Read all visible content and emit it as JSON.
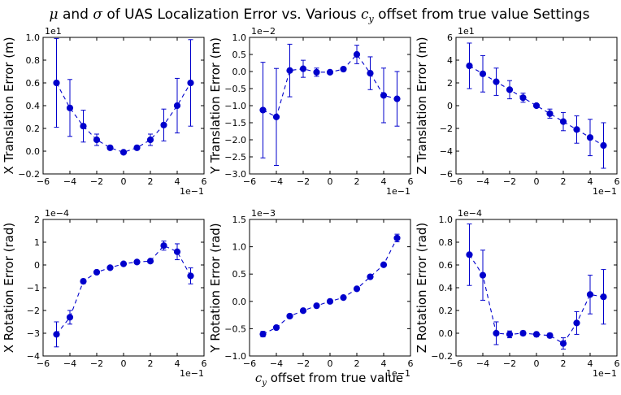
{
  "figure": {
    "title_parts": {
      "mu": "μ",
      "and": " and ",
      "sigma": "σ",
      "middle": " of UAS Localization Error vs. Various ",
      "c": "c",
      "sub": "y",
      "end": " offset from true value Settings"
    },
    "xlabel_parts": {
      "c": "c",
      "sub": "y",
      "end": " offset from true value"
    }
  },
  "colors": {
    "series": "#0000cc",
    "axes": "#000000"
  },
  "chart_data": [
    {
      "type": "scatter",
      "ylabel": "X Translation Error (m)",
      "x_multiplier": "1e−1",
      "y_multiplier": "1e1",
      "xlim": [
        -6,
        6
      ],
      "ylim": [
        -0.2,
        1.0
      ],
      "xticks": [
        -6,
        -4,
        -2,
        0,
        2,
        4,
        6
      ],
      "xtick_labels": [
        "−6",
        "−4",
        "−2",
        "0",
        "2",
        "4",
        "6"
      ],
      "yticks": [
        -0.2,
        0.0,
        0.2,
        0.4,
        0.6,
        0.8,
        1.0
      ],
      "ytick_labels": [
        "−0.2",
        "0.0",
        "0.2",
        "0.4",
        "0.6",
        "0.8",
        "1.0"
      ],
      "x": [
        -5,
        -4,
        -3,
        -2,
        -1,
        0,
        1,
        2,
        3,
        4,
        5
      ],
      "y": [
        0.6,
        0.38,
        0.22,
        0.1,
        0.03,
        -0.01,
        0.03,
        0.1,
        0.23,
        0.4,
        0.6
      ],
      "err": [
        0.39,
        0.25,
        0.14,
        0.05,
        0.01,
        0.01,
        0.01,
        0.05,
        0.14,
        0.24,
        0.38
      ]
    },
    {
      "type": "scatter",
      "ylabel": "Y Translation Error (m)",
      "x_multiplier": "1e−1",
      "y_multiplier": "1e−2",
      "xlim": [
        -6,
        6
      ],
      "ylim": [
        -3.0,
        1.0
      ],
      "xticks": [
        -6,
        -4,
        -2,
        0,
        2,
        4,
        6
      ],
      "xtick_labels": [
        "−6",
        "−4",
        "−2",
        "0",
        "2",
        "4",
        "6"
      ],
      "yticks": [
        -3.0,
        -2.5,
        -2.0,
        -1.5,
        -1.0,
        -0.5,
        0.0,
        0.5,
        1.0
      ],
      "ytick_labels": [
        "−3.0",
        "−2.5",
        "−2.0",
        "−1.5",
        "−1.0",
        "−0.5",
        "0.0",
        "0.5",
        "1.0"
      ],
      "x": [
        -5,
        -4,
        -3,
        -2,
        -1,
        0,
        1,
        2,
        3,
        4,
        5
      ],
      "y": [
        -1.13,
        -1.33,
        0.03,
        0.08,
        -0.02,
        -0.02,
        0.07,
        0.5,
        -0.05,
        -0.7,
        -0.8
      ],
      "err": [
        1.4,
        1.42,
        0.77,
        0.25,
        0.12,
        0.03,
        0.05,
        0.27,
        0.48,
        0.8,
        0.8
      ]
    },
    {
      "type": "scatter",
      "ylabel": "Z Translation Error (m)",
      "x_multiplier": "1e−1",
      "y_multiplier": "1e1",
      "xlim": [
        -6,
        6
      ],
      "ylim": [
        -6,
        6
      ],
      "xticks": [
        -6,
        -4,
        -2,
        0,
        2,
        4,
        6
      ],
      "xtick_labels": [
        "−6",
        "−4",
        "−2",
        "0",
        "2",
        "4",
        "6"
      ],
      "yticks": [
        -6,
        -4,
        -2,
        0,
        2,
        4,
        6
      ],
      "ytick_labels": [
        "−6",
        "−4",
        "−2",
        "0",
        "2",
        "4",
        "6"
      ],
      "x": [
        -5,
        -4,
        -3,
        -2,
        -1,
        0,
        1,
        2,
        3,
        4,
        5
      ],
      "y": [
        3.5,
        2.8,
        2.1,
        1.4,
        0.7,
        0.0,
        -0.7,
        -1.4,
        -2.1,
        -2.8,
        -3.5
      ],
      "err": [
        2.0,
        1.6,
        1.2,
        0.8,
        0.4,
        0.05,
        0.4,
        0.8,
        1.2,
        1.6,
        2.0
      ]
    },
    {
      "type": "scatter",
      "ylabel": "X Rotation Error (rad)",
      "x_multiplier": "1e−1",
      "y_multiplier": "1e−4",
      "xlim": [
        -6,
        6
      ],
      "ylim": [
        -4,
        2
      ],
      "xticks": [
        -6,
        -4,
        -2,
        0,
        2,
        4,
        6
      ],
      "xtick_labels": [
        "−6",
        "−4",
        "−2",
        "0",
        "2",
        "4",
        "6"
      ],
      "yticks": [
        -4,
        -3,
        -2,
        -1,
        0,
        1,
        2
      ],
      "ytick_labels": [
        "−4",
        "−3",
        "−2",
        "−1",
        "0",
        "1",
        "2"
      ],
      "x": [
        -5,
        -4,
        -3,
        -2,
        -1,
        0,
        1,
        2,
        3,
        4,
        5
      ],
      "y": [
        -3.05,
        -2.3,
        -0.72,
        -0.32,
        -0.12,
        0.05,
        0.13,
        0.17,
        0.85,
        0.58,
        -0.48
      ],
      "err": [
        0.55,
        0.3,
        0.1,
        0.07,
        0.05,
        0.03,
        0.04,
        0.06,
        0.2,
        0.35,
        0.35
      ]
    },
    {
      "type": "scatter",
      "ylabel": "Y Rotation Error (rad)",
      "x_multiplier": "1e−1",
      "y_multiplier": "1e−3",
      "xlim": [
        -6,
        6
      ],
      "ylim": [
        -1.0,
        1.5
      ],
      "xticks": [
        -6,
        -4,
        -2,
        0,
        2,
        4,
        6
      ],
      "xtick_labels": [
        "−6",
        "−4",
        "−2",
        "0",
        "2",
        "4",
        "6"
      ],
      "yticks": [
        -1.0,
        -0.5,
        0.0,
        0.5,
        1.0,
        1.5
      ],
      "ytick_labels": [
        "−1.0",
        "−0.5",
        "0.0",
        "0.5",
        "1.0",
        "1.5"
      ],
      "x": [
        -5,
        -4,
        -3,
        -2,
        -1,
        0,
        1,
        2,
        3,
        4,
        5
      ],
      "y": [
        -0.6,
        -0.48,
        -0.27,
        -0.17,
        -0.08,
        0.0,
        0.07,
        0.23,
        0.45,
        0.67,
        1.16
      ],
      "err": [
        0.05,
        0.03,
        0.02,
        0.02,
        0.02,
        0.02,
        0.02,
        0.02,
        0.02,
        0.03,
        0.07
      ]
    },
    {
      "type": "scatter",
      "ylabel": "Z Rotation Error (rad)",
      "x_multiplier": "1e−1",
      "y_multiplier": "1e−4",
      "xlim": [
        -6,
        6
      ],
      "ylim": [
        -0.2,
        1.0
      ],
      "xticks": [
        -6,
        -4,
        -2,
        0,
        2,
        4,
        6
      ],
      "xtick_labels": [
        "−6",
        "−4",
        "−2",
        "0",
        "2",
        "4",
        "6"
      ],
      "yticks": [
        -0.2,
        0.0,
        0.2,
        0.4,
        0.6,
        0.8,
        1.0
      ],
      "ytick_labels": [
        "−0.2",
        "0.0",
        "0.2",
        "0.4",
        "0.6",
        "0.8",
        "1.0"
      ],
      "x": [
        -5,
        -4,
        -3,
        -2,
        -1,
        0,
        1,
        2,
        3,
        4,
        5
      ],
      "y": [
        0.69,
        0.51,
        0.0,
        -0.01,
        0.0,
        -0.01,
        -0.02,
        -0.09,
        0.09,
        0.34,
        0.32
      ],
      "err": [
        0.27,
        0.22,
        0.1,
        0.03,
        0.02,
        0.02,
        0.02,
        0.05,
        0.1,
        0.17,
        0.24
      ]
    }
  ]
}
